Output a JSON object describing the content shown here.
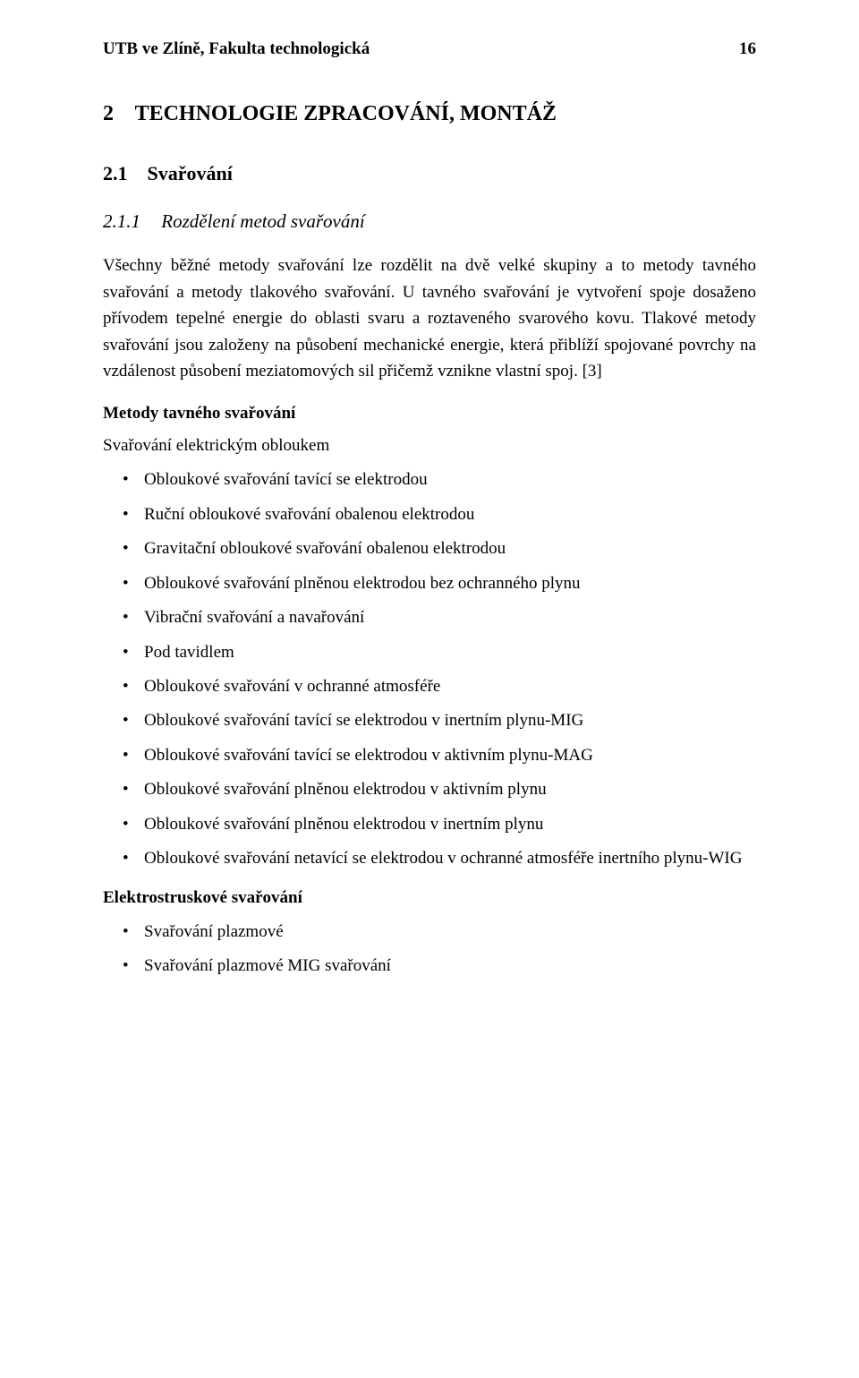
{
  "header": {
    "institution": "UTB ve Zlíně, Fakulta technologická",
    "page_number": "16"
  },
  "section": {
    "num": "2",
    "title": "TECHNOLOGIE ZPRACOVÁNÍ, MONTÁŽ"
  },
  "sub": {
    "num": "2.1",
    "title": "Svařování"
  },
  "subsub": {
    "num": "2.1.1",
    "title": "Rozdělení metod svařování"
  },
  "paragraph": "Všechny běžné metody svařování lze rozdělit na dvě velké skupiny a to metody tavného svařování a metody tlakového svařování. U tavného svařování je vytvoření spoje dosaženo přívodem tepelné energie do oblasti svaru a roztaveného svarového kovu. Tlakové metody svařování jsou založeny na působení mechanické energie, která přiblíží spojované povrchy na vzdálenost působení meziatomových sil přičemž vznikne vlastní spoj. [3]",
  "group1": {
    "heading": "Metody tavného svařování",
    "subheading": "Svařování elektrickým obloukem",
    "items": [
      "Obloukové svařování tavící se elektrodou",
      "Ruční obloukové svařování obalenou elektrodou",
      "Gravitační obloukové svařování obalenou elektrodou",
      "Obloukové svařování plněnou elektrodou bez ochranného plynu",
      "Vibrační svařování a navařování",
      "Pod tavidlem",
      "Obloukové svařování v ochranné atmosféře",
      "Obloukové svařování tavící se elektrodou v inertním plynu-MIG",
      "Obloukové svařování tavící se elektrodou v aktivním plynu-MAG",
      "Obloukové svařování plněnou elektrodou v aktivním plynu",
      "Obloukové svařování plněnou elektrodou v inertním plynu",
      "Obloukové svařování netavící se elektrodou v ochranné atmosféře inertního plynu-WIG"
    ]
  },
  "group2": {
    "heading": "Elektrostruskové svařování",
    "items": [
      "Svařování plazmové",
      "Svařování plazmové MIG svařování"
    ]
  }
}
